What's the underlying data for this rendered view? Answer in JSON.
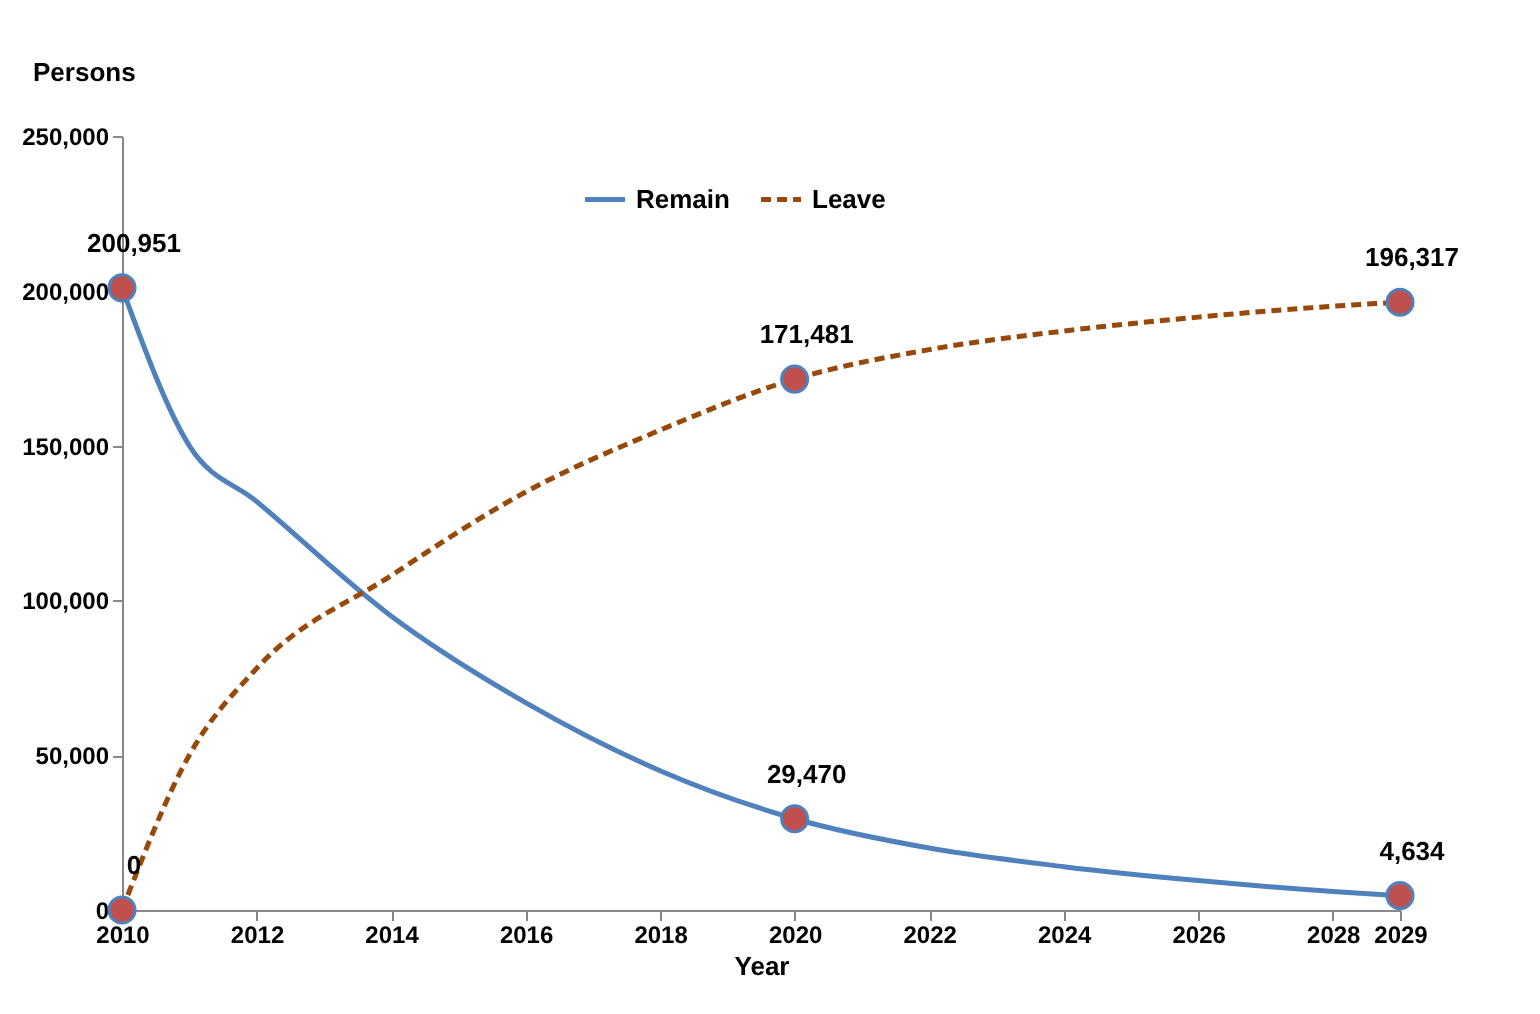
{
  "chart_data": {
    "type": "line",
    "xlabel": "Year",
    "ylabel": "Persons",
    "xlim": [
      2010,
      2029
    ],
    "xticks": [
      2010,
      2012,
      2014,
      2016,
      2018,
      2020,
      2022,
      2024,
      2026,
      2028,
      2029
    ],
    "ylim": [
      0,
      250000
    ],
    "yticks": [
      0,
      {
        "value": 50000,
        "label": "50,000"
      },
      {
        "value": 100000,
        "label": "100,000"
      },
      {
        "value": 150000,
        "label": "150,000"
      },
      {
        "value": 200000,
        "label": "200,000"
      },
      {
        "value": 250000,
        "label": "250,000"
      }
    ],
    "grid": false,
    "legend": "top",
    "series": [
      {
        "name": "Remain",
        "color": "#4f81bd",
        "line_style": "solid",
        "x": [
          2010,
          2011,
          2012,
          2014,
          2016,
          2018,
          2020,
          2022,
          2024,
          2026,
          2028,
          2029
        ],
        "values": [
          200951,
          150000,
          132000,
          95000,
          67000,
          45000,
          29470,
          20000,
          14000,
          9500,
          6000,
          4634
        ]
      },
      {
        "name": "Leave",
        "color": "#984807",
        "line_style": "dashed",
        "x": [
          2010,
          2011,
          2012,
          2014,
          2016,
          2018,
          2020,
          2022,
          2024,
          2026,
          2028,
          2029
        ],
        "values": [
          0,
          50000,
          78000,
          108000,
          135000,
          155000,
          171481,
          181000,
          187000,
          191500,
          195000,
          196317
        ]
      },
      {
        "type": "scatter",
        "color": "#c0504d",
        "marker": "circle",
        "x": [
          2010,
          2020,
          2029
        ],
        "values": [
          200951,
          29470,
          4634
        ],
        "value_labels": [
          "200,951",
          "29,470",
          "4,634"
        ]
      },
      {
        "type": "scatter",
        "color": "#c0504d",
        "marker": "circle",
        "x": [
          2010,
          2020,
          2029
        ],
        "values": [
          0,
          171481,
          196317
        ],
        "value_labels": [
          "0",
          "171,481",
          "196,317"
        ]
      }
    ]
  }
}
